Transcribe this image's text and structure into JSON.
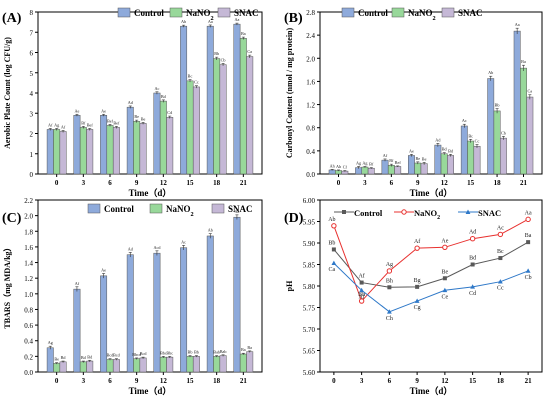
{
  "figure": {
    "legend_labels": [
      "Control",
      "NaNO2",
      "SNAC"
    ],
    "colors": {
      "control": "#8eaadb",
      "nano2": "#98d89a",
      "snac": "#c5b8d6",
      "line_control": "#595959",
      "line_nano2": "#e8312f",
      "line_snac": "#2e78c8"
    }
  },
  "chart_data": [
    {
      "panel": "(A)",
      "type": "bar",
      "xlabel": "Time（d）",
      "ylabel": "Aerobic Plate Count (log CFU/g)",
      "ylim": [
        0,
        8
      ],
      "yticks": [
        0,
        1,
        2,
        3,
        4,
        5,
        6,
        7,
        8
      ],
      "categories": [
        "0",
        "3",
        "6",
        "9",
        "12",
        "15",
        "18",
        "21"
      ],
      "series": [
        {
          "name": "Control",
          "values": [
            2.2,
            2.9,
            2.9,
            3.3,
            4.0,
            7.3,
            7.3,
            7.4
          ],
          "errors": [
            0.05,
            0.05,
            0.05,
            0.06,
            0.06,
            0.05,
            0.06,
            0.05
          ],
          "labels": [
            "Af",
            "Ae",
            "Ae",
            "Ad",
            "Ac",
            "Ab",
            "Aa",
            "Aa"
          ]
        },
        {
          "name": "NaNO2",
          "values": [
            2.2,
            2.3,
            2.4,
            2.6,
            3.6,
            4.6,
            5.7,
            6.7
          ],
          "errors": [
            0.05,
            0.05,
            0.05,
            0.06,
            0.06,
            0.06,
            0.07,
            0.06
          ],
          "labels": [
            "Ag",
            "Bf",
            "Bef",
            "Be",
            "Bd",
            "Bc",
            "Bb",
            "Ba"
          ]
        },
        {
          "name": "SNAC",
          "values": [
            2.1,
            2.2,
            2.3,
            2.5,
            2.8,
            4.3,
            5.4,
            5.8
          ],
          "errors": [
            0.05,
            0.05,
            0.05,
            0.05,
            0.06,
            0.06,
            0.06,
            0.07
          ],
          "labels": [
            "Af",
            "Bef",
            "Bef",
            "Be",
            "Cd",
            "Cc",
            "Cb",
            "Ca"
          ]
        }
      ]
    },
    {
      "panel": "(B)",
      "type": "bar",
      "xlabel": "Time（d）",
      "ylabel": "Carbonyl Content (nmol / mg protein)",
      "ylim": [
        0.0,
        2.8
      ],
      "yticks": [
        "0.0",
        "0.4",
        "0.8",
        "1.2",
        "1.6",
        "2.0",
        "2.4",
        "2.8"
      ],
      "categories": [
        "0",
        "3",
        "6",
        "9",
        "12",
        "15",
        "18",
        "21"
      ],
      "series": [
        {
          "name": "Control",
          "values": [
            0.07,
            0.11,
            0.24,
            0.32,
            0.5,
            0.83,
            1.65,
            2.47
          ],
          "errors": [
            0.01,
            0.02,
            0.02,
            0.02,
            0.03,
            0.03,
            0.04,
            0.05
          ],
          "labels": [
            "Ah",
            "Ag",
            "Af",
            "Ae",
            "Ad",
            "Ac",
            "Ab",
            "Aa"
          ]
        },
        {
          "name": "NaNO2",
          "values": [
            0.06,
            0.12,
            0.15,
            0.19,
            0.35,
            0.57,
            1.09,
            1.83
          ],
          "errors": [
            0.01,
            0.01,
            0.02,
            0.02,
            0.02,
            0.03,
            0.04,
            0.05
          ],
          "labels": [
            "Ah",
            "Ag",
            "Bf",
            "Be",
            "Bd",
            "Bc",
            "Bb",
            "Ba"
          ]
        },
        {
          "name": "SNAC",
          "values": [
            0.05,
            0.1,
            0.13,
            0.18,
            0.32,
            0.48,
            0.62,
            1.33
          ],
          "errors": [
            0.01,
            0.01,
            0.01,
            0.02,
            0.02,
            0.03,
            0.03,
            0.04
          ],
          "labels": [
            "Cf",
            "Bf",
            "Bef",
            "Be",
            "Bd",
            "Cc",
            "Cb",
            "Ca"
          ]
        }
      ]
    },
    {
      "panel": "(C)",
      "type": "bar",
      "xlabel": "Time（d）",
      "ylabel": "TBARS（mg MDA/kg）",
      "ylim": [
        0.0,
        2.2
      ],
      "yticks": [
        "0.0",
        "0.2",
        "0.4",
        "0.6",
        "0.8",
        "1.0",
        "1.2",
        "1.4",
        "1.6",
        "1.8",
        "2.0",
        "2.2"
      ],
      "categories": [
        "0",
        "3",
        "6",
        "9",
        "12",
        "15",
        "18",
        "21"
      ],
      "series": [
        {
          "name": "Control",
          "values": [
            0.31,
            1.06,
            1.23,
            1.5,
            1.52,
            1.59,
            1.74,
            1.98
          ],
          "errors": [
            0.02,
            0.03,
            0.03,
            0.03,
            0.03,
            0.03,
            0.03,
            0.03
          ],
          "labels": [
            "Ag",
            "Af",
            "Ae",
            "Ad",
            "Acd",
            "Ac",
            "Ab",
            "Aa"
          ]
        },
        {
          "name": "NaNO2",
          "values": [
            0.11,
            0.13,
            0.16,
            0.17,
            0.19,
            0.2,
            0.2,
            0.23
          ],
          "errors": [
            0.01,
            0.01,
            0.01,
            0.01,
            0.01,
            0.01,
            0.01,
            0.01
          ],
          "labels": [
            "Be",
            "Bd",
            "Bcd",
            "Bbcd",
            "Bbc",
            "Bb",
            "Bab",
            "Ba"
          ]
        },
        {
          "name": "SNAC",
          "values": [
            0.13,
            0.14,
            0.16,
            0.18,
            0.19,
            0.2,
            0.21,
            0.26
          ],
          "errors": [
            0.01,
            0.01,
            0.01,
            0.01,
            0.01,
            0.01,
            0.01,
            0.01
          ],
          "labels": [
            "Bd",
            "Bd",
            "Bcd",
            "Bcd",
            "Bbc",
            "Bb",
            "Bab",
            "Ba"
          ]
        }
      ]
    },
    {
      "panel": "(D)",
      "type": "line",
      "xlabel": "Time（d）",
      "ylabel": "pH",
      "ylim": [
        5.6,
        6.0
      ],
      "yticks": [
        "5.60",
        "5.65",
        "5.70",
        "5.75",
        "5.80",
        "5.85",
        "5.90",
        "5.95",
        "6.00"
      ],
      "x": [
        0,
        3,
        6,
        9,
        12,
        15,
        18,
        21
      ],
      "series": [
        {
          "name": "Control",
          "values": [
            5.885,
            5.808,
            5.797,
            5.798,
            5.818,
            5.85,
            5.865,
            5.902
          ],
          "labels": [
            "Bb",
            "Af",
            "Bh",
            "Bg",
            "Be",
            "Bd",
            "Bc",
            "Ba"
          ]
        },
        {
          "name": "NaNO2",
          "values": [
            5.94,
            5.765,
            5.835,
            5.888,
            5.89,
            5.91,
            5.92,
            5.955
          ],
          "labels": [
            "Ab",
            "Bh",
            "Ag",
            "Af",
            "Ae",
            "Ad",
            "Ac",
            "Aa"
          ]
        },
        {
          "name": "SNAC",
          "values": [
            5.853,
            5.79,
            5.74,
            5.765,
            5.79,
            5.798,
            5.81,
            5.835
          ],
          "labels": [
            "Ca",
            "Af",
            "Ch",
            "Cg",
            "Ce",
            "Cd",
            "Cc",
            "Cb"
          ]
        }
      ]
    }
  ]
}
